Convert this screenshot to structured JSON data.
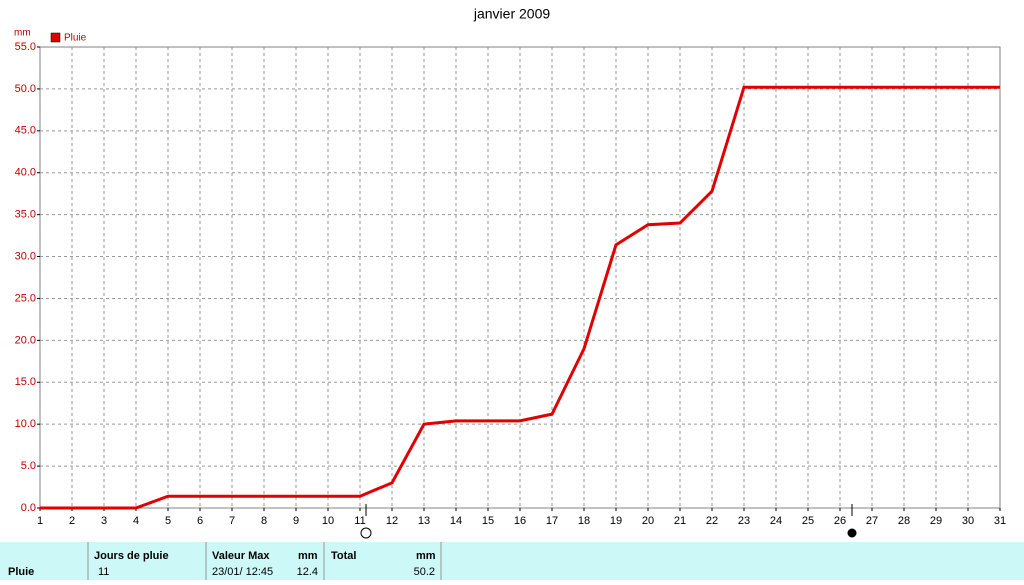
{
  "chart_data": {
    "type": "line",
    "title": "janvier 2009",
    "y_label": "mm",
    "x": [
      1,
      2,
      3,
      4,
      5,
      6,
      7,
      8,
      9,
      10,
      11,
      12,
      13,
      14,
      15,
      16,
      17,
      18,
      19,
      20,
      21,
      22,
      23,
      24,
      25,
      26,
      27,
      28,
      29,
      30,
      31
    ],
    "series": [
      {
        "name": "Pluie",
        "color": "#e00000",
        "values": [
          0,
          0,
          0,
          0,
          1.4,
          1.4,
          1.4,
          1.4,
          1.4,
          1.4,
          1.4,
          3.0,
          10.0,
          10.4,
          10.4,
          10.4,
          11.2,
          19.0,
          31.4,
          33.8,
          34.0,
          37.8,
          50.2,
          50.2,
          50.2,
          50.2,
          50.2,
          50.2,
          50.2,
          50.2,
          50.2
        ]
      }
    ],
    "xlim": [
      1,
      31
    ],
    "xticks": [
      1,
      2,
      3,
      4,
      5,
      6,
      7,
      8,
      9,
      10,
      11,
      12,
      13,
      14,
      15,
      16,
      17,
      18,
      19,
      20,
      21,
      22,
      23,
      24,
      25,
      26,
      27,
      28,
      29,
      30,
      31
    ],
    "ylim": [
      0,
      55
    ],
    "yticks": [
      {
        "value": 0,
        "label": "0.0"
      },
      {
        "value": 5,
        "label": "5.0"
      },
      {
        "value": 10,
        "label": "10.0"
      },
      {
        "value": 15,
        "label": "15.0"
      },
      {
        "value": 20,
        "label": "20.0"
      },
      {
        "value": 25,
        "label": "25.0"
      },
      {
        "value": 30,
        "label": "30.0"
      },
      {
        "value": 35,
        "label": "35.0"
      },
      {
        "value": 40,
        "label": "40.0"
      },
      {
        "value": 45,
        "label": "45.0"
      },
      {
        "value": 50,
        "label": "50.0"
      },
      {
        "value": 55,
        "label": "55.0"
      }
    ],
    "grid": true,
    "legend": "top-left"
  },
  "table": {
    "headers": [
      "Jours de pluie",
      "Valeur Max",
      "mm",
      "Total",
      "mm"
    ],
    "rows": [
      [
        "Pluie",
        "11",
        "23/01/ 12:45",
        "12.4",
        "50.2"
      ]
    ]
  }
}
